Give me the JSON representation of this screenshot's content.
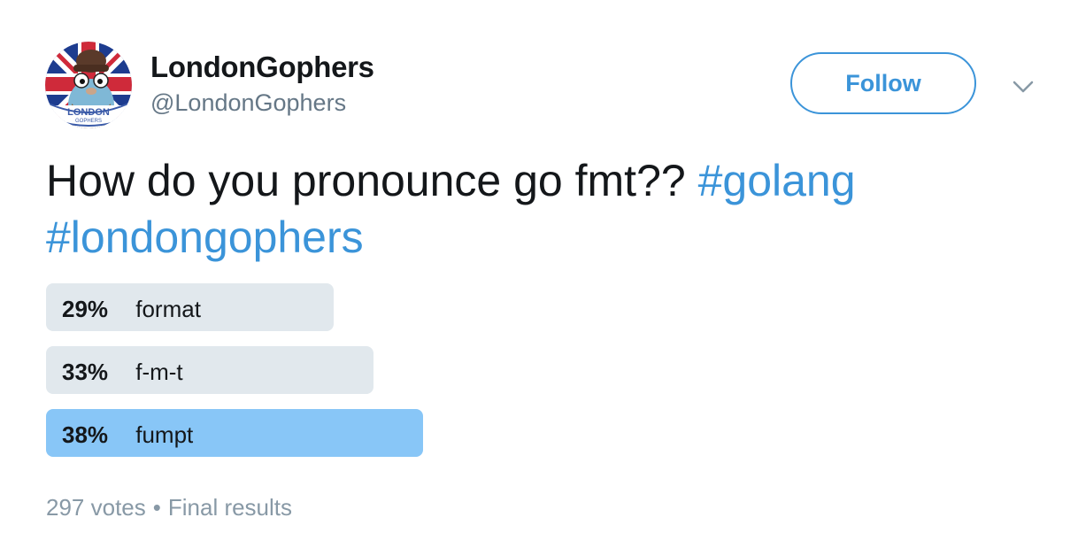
{
  "author": {
    "display_name": "LondonGophers",
    "handle": "@LondonGophers",
    "avatar": {
      "icon": "gopher-avatar-icon",
      "badge_text": "LONDON",
      "badge_subtext": "GOPHERS"
    }
  },
  "follow_button": {
    "label": "Follow"
  },
  "menu_icon": "chevron-down-icon",
  "tweet": {
    "text": "How do you pronounce go fmt??",
    "hashtags": [
      "#golang",
      "#londongophers"
    ]
  },
  "poll": {
    "options": [
      {
        "percent_label": "29%",
        "label": "format",
        "percent": 29,
        "winner": false
      },
      {
        "percent_label": "33%",
        "label": "f-m-t",
        "percent": 33,
        "winner": false
      },
      {
        "percent_label": "38%",
        "label": "fumpt",
        "percent": 38,
        "winner": true
      }
    ],
    "votes": "297 votes",
    "separator": "•",
    "status": "Final results"
  },
  "colors": {
    "accent": "#3b94d9",
    "bar": "#e1e8ed",
    "winner_bar": "#88c6f7",
    "muted": "#8899a6"
  }
}
